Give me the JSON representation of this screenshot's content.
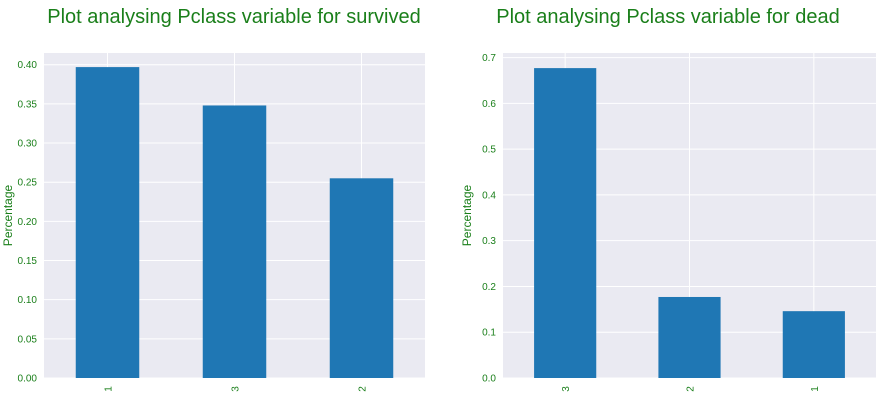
{
  "colors": {
    "title": "#1a7f1a",
    "tick": "#1a7f1a",
    "bar": "#1f77b4",
    "plot_bg": "#eaeaf2",
    "grid": "#ffffff"
  },
  "chart_data": [
    {
      "type": "bar",
      "title": "Plot analysing Pclass variable for survived",
      "xlabel": "",
      "ylabel": "Percentage",
      "categories": [
        "1",
        "3",
        "2"
      ],
      "values": [
        0.397,
        0.348,
        0.255
      ],
      "ylim": [
        0,
        0.415
      ],
      "yticks": [
        "0.00",
        "0.05",
        "0.10",
        "0.15",
        "0.20",
        "0.25",
        "0.30",
        "0.35",
        "0.40"
      ],
      "ytick_values": [
        0,
        0.05,
        0.1,
        0.15,
        0.2,
        0.25,
        0.3,
        0.35,
        0.4
      ],
      "grid": true,
      "xtick_rotation": "vertical"
    },
    {
      "type": "bar",
      "title": "Plot analysing Pclass variable for dead",
      "xlabel": "",
      "ylabel": "Percentage",
      "categories": [
        "3",
        "2",
        "1"
      ],
      "values": [
        0.677,
        0.177,
        0.146
      ],
      "ylim": [
        0,
        0.71
      ],
      "yticks": [
        "0.0",
        "0.1",
        "0.2",
        "0.3",
        "0.4",
        "0.5",
        "0.6",
        "0.7"
      ],
      "ytick_values": [
        0,
        0.1,
        0.2,
        0.3,
        0.4,
        0.5,
        0.6,
        0.7
      ],
      "grid": true,
      "xtick_rotation": "vertical"
    }
  ]
}
